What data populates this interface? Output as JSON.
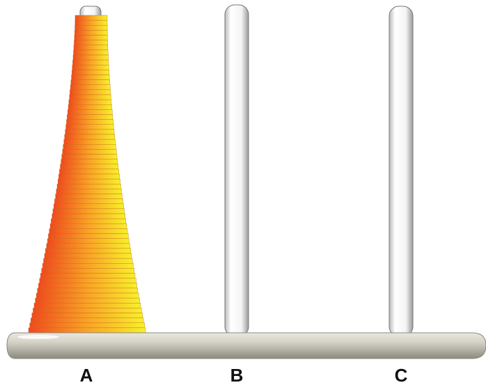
{
  "pegs": [
    {
      "label": "A"
    },
    {
      "label": "B"
    },
    {
      "label": "C"
    }
  ]
}
